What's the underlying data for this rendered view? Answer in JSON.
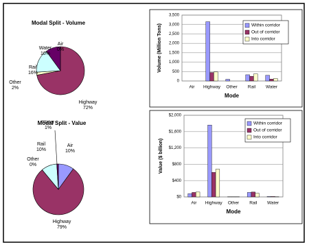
{
  "chart_data": [
    {
      "type": "pie",
      "title": "Modal Split - Volume",
      "categories": [
        "Air",
        "Highway",
        "Other",
        "Rail",
        "Water"
      ],
      "values": [
        0,
        72,
        2,
        16,
        10
      ],
      "value_labels": [
        "0%",
        "72%",
        "2%",
        "16%",
        "10%"
      ],
      "colors": [
        "#9999ff",
        "#993366",
        "#ffffcc",
        "#ccffff",
        "#660066"
      ]
    },
    {
      "type": "pie",
      "title": "Modal Split - Value",
      "categories": [
        "Air",
        "Highway",
        "Other",
        "Rail",
        "Water"
      ],
      "values": [
        10,
        79,
        0,
        10,
        1
      ],
      "value_labels": [
        "10%",
        "79%",
        "0%",
        "10%",
        "1%"
      ],
      "colors": [
        "#9999ff",
        "#993366",
        "#ffffcc",
        "#ccffff",
        "#660066"
      ]
    },
    {
      "type": "bar",
      "x_label": "Mode",
      "y_label": "Volume (Million Tons)",
      "categories": [
        "Air",
        "Highway",
        "Other",
        "Rail",
        "Water"
      ],
      "series": [
        {
          "name": "Within corridor",
          "color": "#9999ff",
          "values": [
            0,
            3150,
            90,
            330,
            300
          ]
        },
        {
          "name": "Out of corridor",
          "color": "#993366",
          "values": [
            0,
            450,
            0,
            250,
            100
          ]
        },
        {
          "name": "Into corridor",
          "color": "#ffffcc",
          "values": [
            0,
            480,
            0,
            380,
            130
          ]
        }
      ],
      "ylim": [
        0,
        3500
      ],
      "yticks": [
        0,
        500,
        {
          "value": 1000,
          "label": "1,000"
        },
        {
          "value": 1500,
          "label": "1,500"
        },
        {
          "value": 2000,
          "label": "2,000"
        },
        {
          "value": 2500,
          "label": "2,500"
        },
        {
          "value": 3000,
          "label": "3,000"
        },
        {
          "value": 3500,
          "label": "3,500"
        }
      ],
      "grid": true,
      "legend": "upper right"
    },
    {
      "type": "bar",
      "x_label": "Mode",
      "y_label": "Value ($ billion)",
      "categories": [
        "Air",
        "Highway",
        "Other",
        "Rail",
        "Water"
      ],
      "series": [
        {
          "name": "Within corridor",
          "color": "#9999ff",
          "values": [
            80,
            1760,
            5,
            110,
            10
          ]
        },
        {
          "name": "Out of corridor",
          "color": "#993366",
          "values": [
            110,
            600,
            5,
            120,
            10
          ]
        },
        {
          "name": "Into corridor",
          "color": "#ffffcc",
          "values": [
            120,
            680,
            5,
            90,
            5
          ]
        }
      ],
      "ylim": [
        0,
        2000
      ],
      "yticks": [
        {
          "value": 0,
          "label": "$0"
        },
        {
          "value": 400,
          "label": "$400"
        },
        {
          "value": 800,
          "label": "$800"
        },
        {
          "value": 1200,
          "label": "$1,200"
        },
        {
          "value": 1600,
          "label": "$1,600"
        },
        {
          "value": 2000,
          "label": "$2,000"
        }
      ],
      "grid": true,
      "legend": "upper right"
    }
  ]
}
